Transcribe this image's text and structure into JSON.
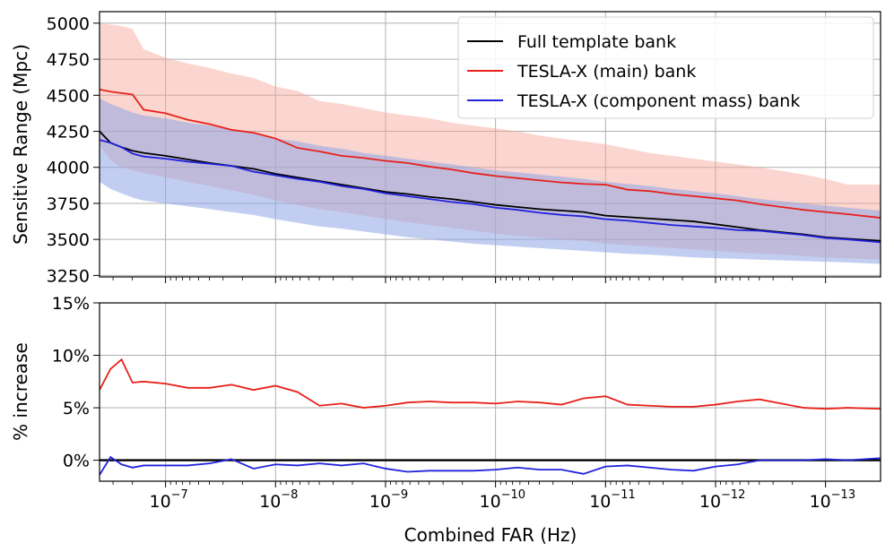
{
  "chart_data": [
    {
      "type": "line",
      "panel": "top",
      "title": "",
      "xlabel": "",
      "ylabel": "Sensitive Range (Mpc)",
      "xscale": "log",
      "x_reversed": true,
      "x_tick_exponents": [
        -7,
        -8,
        -9,
        -10,
        -11,
        -12,
        -13
      ],
      "xlim_exp": [
        -6.4,
        -13.5
      ],
      "ylim": [
        3240,
        5080
      ],
      "yticks": [
        3250,
        3500,
        3750,
        4000,
        4250,
        4500,
        4750,
        5000
      ],
      "ytick_labels": [
        "3250",
        "3500",
        "3750",
        "4000",
        "4250",
        "4500",
        "4750",
        "5000"
      ],
      "grid": true,
      "legend_position": "top-right",
      "legend": [
        {
          "name": "Full template bank",
          "color": "#000000"
        },
        {
          "name": "TESLA-X (main) bank",
          "color": "#e8201a"
        },
        {
          "name": "TESLA-X (component mass) bank",
          "color": "#2222dd"
        }
      ],
      "x_exp": [
        -6.4,
        -6.5,
        -6.6,
        -6.7,
        -6.8,
        -7.0,
        -7.2,
        -7.4,
        -7.6,
        -7.8,
        -8.0,
        -8.2,
        -8.4,
        -8.6,
        -8.8,
        -9.0,
        -9.2,
        -9.4,
        -9.6,
        -9.8,
        -10.0,
        -10.2,
        -10.4,
        -10.6,
        -10.8,
        -11.0,
        -11.2,
        -11.4,
        -11.6,
        -11.8,
        -12.0,
        -12.2,
        -12.4,
        -12.6,
        -12.8,
        -13.0,
        -13.2,
        -13.5
      ],
      "series": [
        {
          "name": "Full template bank",
          "color": "#000000",
          "values": [
            4250,
            4170,
            4140,
            4115,
            4100,
            4080,
            4055,
            4030,
            4010,
            3990,
            3955,
            3930,
            3905,
            3880,
            3855,
            3830,
            3815,
            3795,
            3780,
            3760,
            3740,
            3725,
            3710,
            3700,
            3690,
            3665,
            3655,
            3645,
            3635,
            3625,
            3605,
            3585,
            3565,
            3550,
            3535,
            3515,
            3505,
            3490
          ],
          "band_low": [
            3920,
            3850,
            3810,
            3790,
            3780,
            3760,
            3740,
            3710,
            3690,
            3670,
            3640,
            3615,
            3590,
            3575,
            3555,
            3535,
            3515,
            3500,
            3485,
            3470,
            3460,
            3450,
            3445,
            3435,
            3425,
            3410,
            3400,
            3395,
            3385,
            3375,
            3370,
            3365,
            3360,
            3355,
            3350,
            3345,
            3340,
            3330
          ],
          "band_high": [
            4580,
            4490,
            4460,
            4440,
            4420,
            4390,
            4360,
            4330,
            4300,
            4270,
            4230,
            4205,
            4170,
            4150,
            4120,
            4095,
            4080,
            4060,
            4040,
            4025,
            4000,
            3985,
            3970,
            3960,
            3945,
            3925,
            3910,
            3895,
            3880,
            3865,
            3845,
            3830,
            3810,
            3790,
            3770,
            3750,
            3735,
            3720
          ]
        },
        {
          "name": "TESLA-X (main) bank",
          "color": "#e8201a",
          "values": [
            4540,
            4525,
            4515,
            4505,
            4400,
            4375,
            4330,
            4300,
            4260,
            4240,
            4200,
            4135,
            4110,
            4080,
            4065,
            4045,
            4030,
            4005,
            3985,
            3960,
            3940,
            3925,
            3910,
            3895,
            3885,
            3880,
            3845,
            3835,
            3815,
            3800,
            3785,
            3770,
            3745,
            3725,
            3705,
            3690,
            3675,
            3650
          ],
          "band_low": [
            4150,
            4050,
            4000,
            3980,
            3960,
            3930,
            3900,
            3870,
            3840,
            3810,
            3770,
            3740,
            3710,
            3690,
            3665,
            3640,
            3620,
            3600,
            3580,
            3560,
            3540,
            3525,
            3510,
            3500,
            3490,
            3470,
            3460,
            3450,
            3440,
            3430,
            3420,
            3410,
            3400,
            3395,
            3385,
            3375,
            3370,
            3360
          ],
          "band_high": [
            5000,
            4990,
            4980,
            4960,
            4820,
            4760,
            4720,
            4690,
            4650,
            4620,
            4560,
            4530,
            4460,
            4440,
            4410,
            4380,
            4360,
            4340,
            4310,
            4290,
            4270,
            4250,
            4220,
            4200,
            4180,
            4160,
            4130,
            4100,
            4080,
            4060,
            4040,
            4020,
            4000,
            3975,
            3950,
            3920,
            3880,
            3880
          ]
        },
        {
          "name": "TESLA-X (component mass) bank",
          "color": "#2222dd",
          "values": [
            4190,
            4170,
            4140,
            4095,
            4075,
            4060,
            4040,
            4025,
            4010,
            3970,
            3945,
            3920,
            3900,
            3870,
            3850,
            3820,
            3800,
            3780,
            3760,
            3745,
            3720,
            3705,
            3685,
            3670,
            3660,
            3640,
            3630,
            3615,
            3600,
            3590,
            3580,
            3565,
            3560,
            3545,
            3530,
            3510,
            3500,
            3480
          ],
          "band_low": [
            3900,
            3850,
            3820,
            3790,
            3770,
            3750,
            3730,
            3710,
            3690,
            3670,
            3640,
            3615,
            3590,
            3575,
            3555,
            3535,
            3515,
            3500,
            3485,
            3470,
            3460,
            3450,
            3440,
            3430,
            3420,
            3410,
            3400,
            3395,
            3385,
            3375,
            3370,
            3365,
            3360,
            3355,
            3350,
            3345,
            3340,
            3330
          ],
          "band_high": [
            4480,
            4440,
            4410,
            4380,
            4360,
            4340,
            4310,
            4290,
            4260,
            4240,
            4200,
            4180,
            4150,
            4130,
            4100,
            4080,
            4060,
            4040,
            4020,
            4000,
            3980,
            3965,
            3950,
            3935,
            3920,
            3900,
            3885,
            3870,
            3850,
            3835,
            3820,
            3800,
            3780,
            3765,
            3750,
            3735,
            3720,
            3700
          ]
        }
      ]
    },
    {
      "type": "line",
      "panel": "bottom",
      "title": "",
      "xlabel": "Combined FAR (Hz)",
      "ylabel": "% increase",
      "xscale": "log",
      "x_reversed": true,
      "x_tick_labels": [
        "10",
        "10",
        "10",
        "10",
        "10",
        "10",
        "10"
      ],
      "x_tick_exponent_labels": [
        "−7",
        "−8",
        "−9",
        "−10",
        "−11",
        "−12",
        "−13"
      ],
      "x_tick_exponents": [
        -7,
        -8,
        -9,
        -10,
        -11,
        -12,
        -13
      ],
      "xlim_exp": [
        -6.4,
        -13.5
      ],
      "ylim": [
        -2,
        15
      ],
      "yticks": [
        0,
        5,
        10,
        15
      ],
      "ytick_labels": [
        "0%",
        "5%",
        "10%",
        "15%"
      ],
      "grid": true,
      "reference_line": {
        "y": 0,
        "color": "#000000"
      },
      "x_exp": [
        -6.4,
        -6.5,
        -6.6,
        -6.7,
        -6.8,
        -7.0,
        -7.2,
        -7.4,
        -7.6,
        -7.8,
        -8.0,
        -8.2,
        -8.4,
        -8.6,
        -8.8,
        -9.0,
        -9.2,
        -9.4,
        -9.6,
        -9.8,
        -10.0,
        -10.2,
        -10.4,
        -10.6,
        -10.8,
        -11.0,
        -11.2,
        -11.4,
        -11.6,
        -11.8,
        -12.0,
        -12.2,
        -12.4,
        -12.6,
        -12.8,
        -13.0,
        -13.2,
        -13.5
      ],
      "series": [
        {
          "name": "TESLA-X (main) bank",
          "color": "#e8201a",
          "values": [
            6.7,
            8.7,
            9.6,
            7.4,
            7.5,
            7.3,
            6.9,
            6.9,
            7.2,
            6.7,
            7.1,
            6.5,
            5.2,
            5.4,
            5.0,
            5.2,
            5.5,
            5.6,
            5.5,
            5.5,
            5.4,
            5.6,
            5.5,
            5.3,
            5.9,
            6.1,
            5.3,
            5.2,
            5.1,
            5.1,
            5.3,
            5.6,
            5.8,
            5.4,
            5.0,
            4.9,
            5.0,
            4.9
          ]
        },
        {
          "name": "TESLA-X (component mass) bank",
          "color": "#2222dd",
          "values": [
            -1.4,
            0.3,
            -0.4,
            -0.7,
            -0.5,
            -0.5,
            -0.5,
            -0.3,
            0.1,
            -0.8,
            -0.4,
            -0.5,
            -0.3,
            -0.5,
            -0.3,
            -0.8,
            -1.1,
            -1.0,
            -1.0,
            -1.0,
            -0.9,
            -0.7,
            -0.9,
            -0.9,
            -1.3,
            -0.6,
            -0.5,
            -0.7,
            -0.9,
            -1.0,
            -0.6,
            -0.4,
            0.0,
            0.0,
            0.0,
            0.1,
            0.0,
            0.2
          ]
        }
      ]
    }
  ]
}
